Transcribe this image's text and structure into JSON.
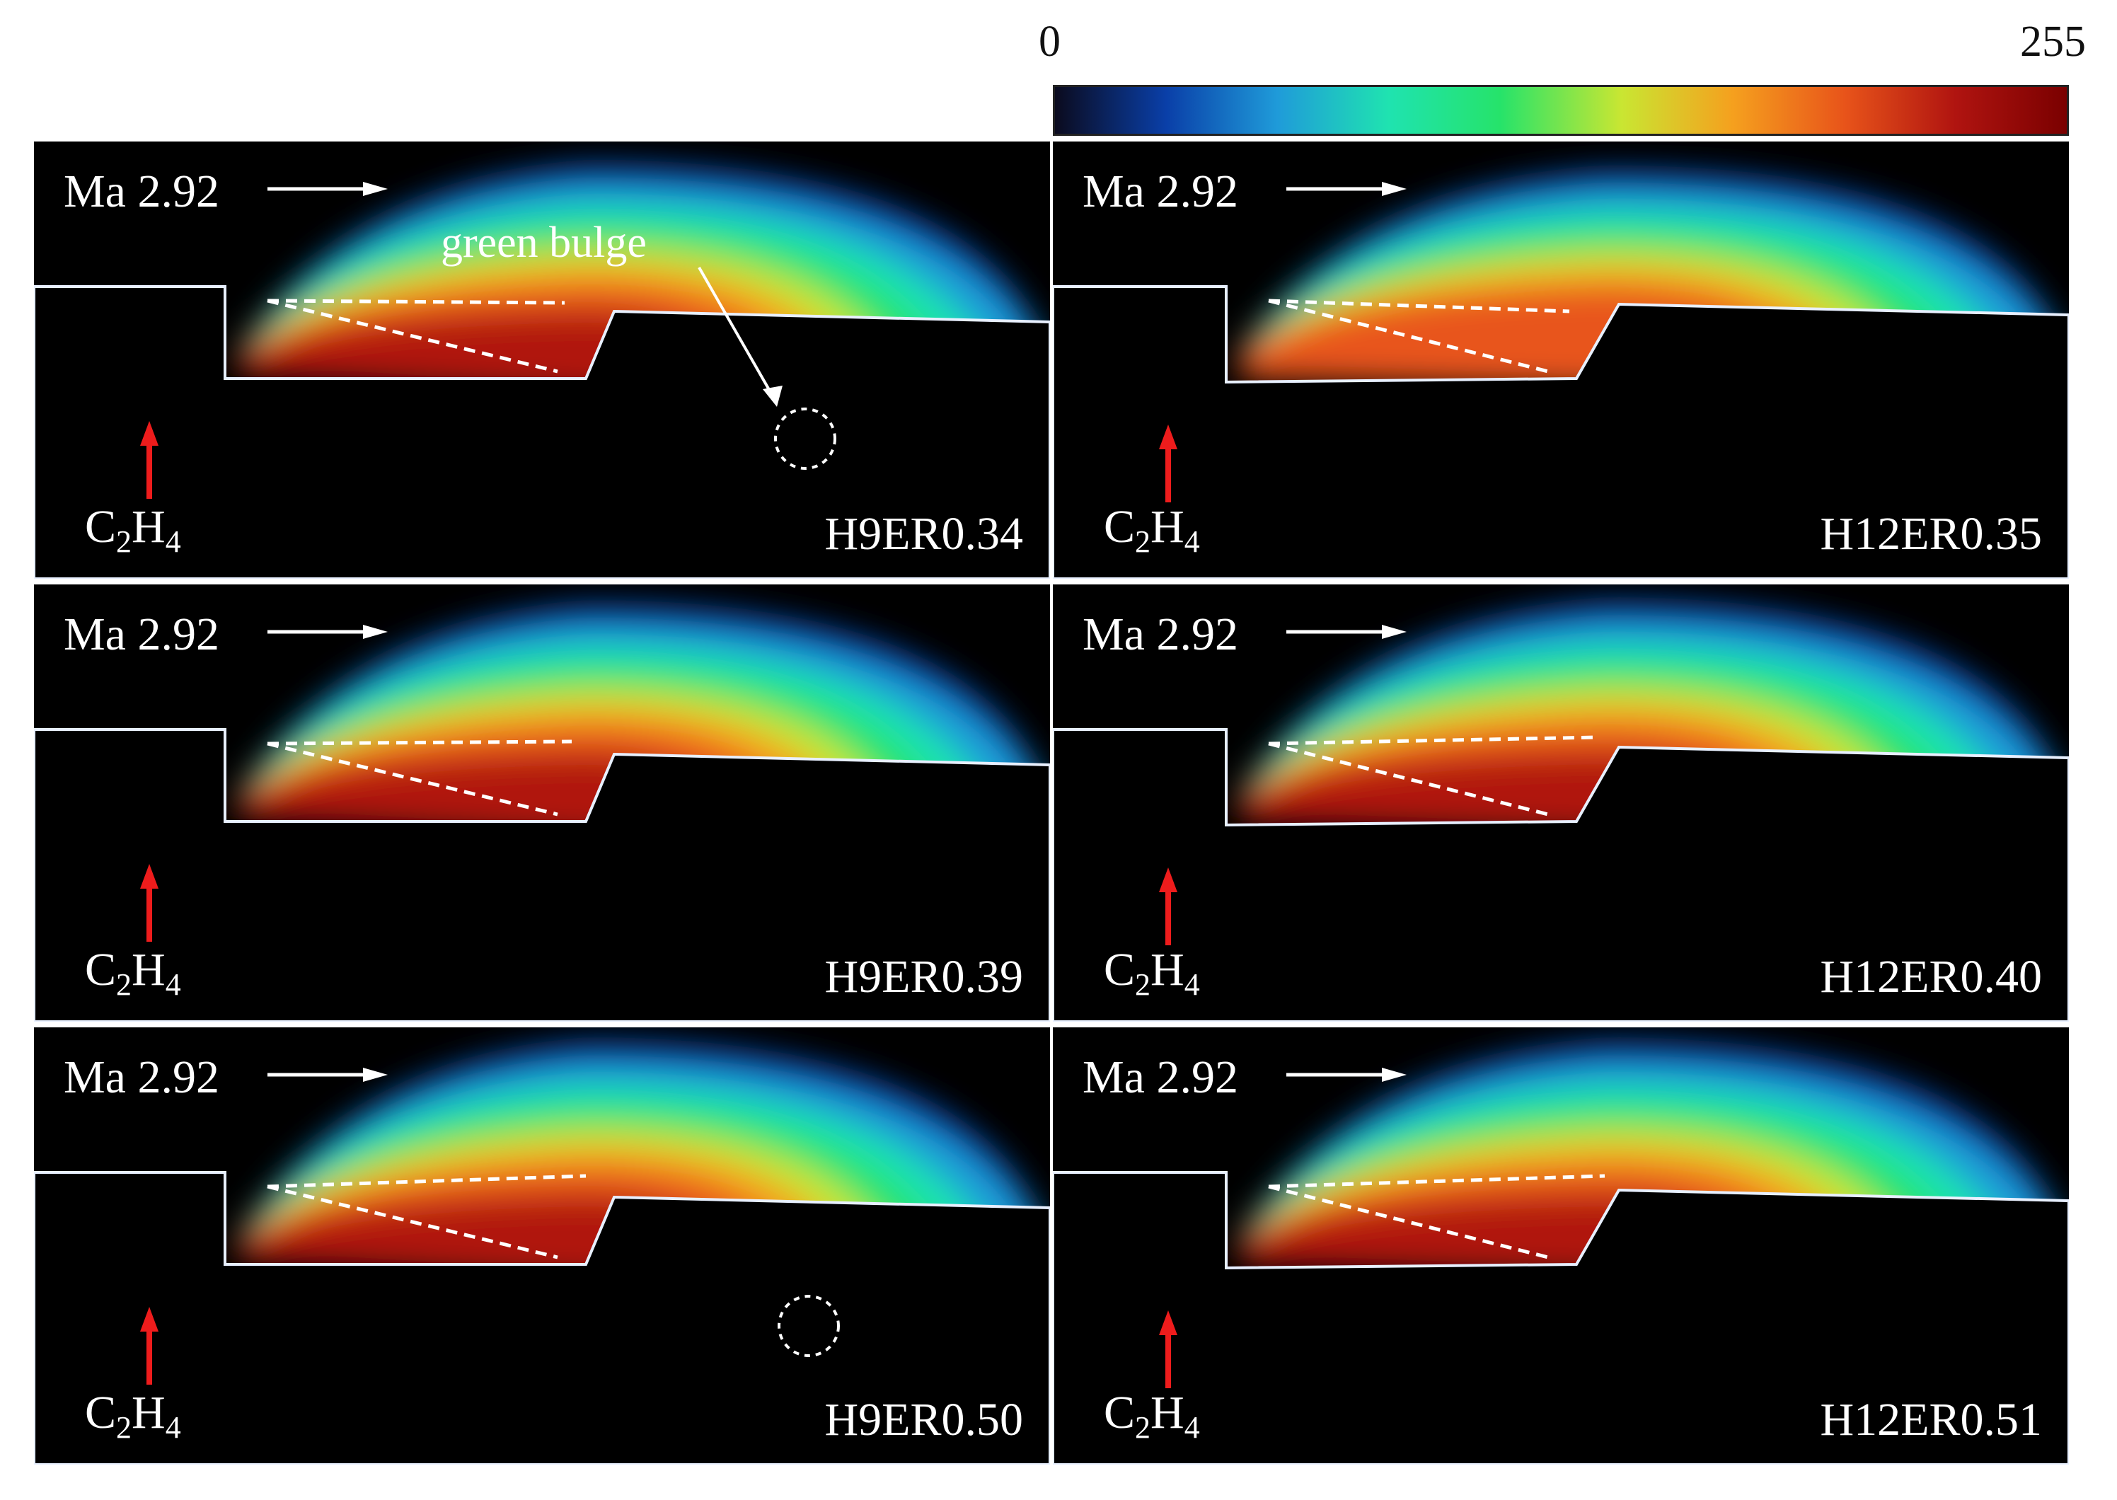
{
  "colorbar": {
    "min_label": "0",
    "max_label": "255",
    "stops": [
      "#0b0b1e",
      "#0a3fa8",
      "#1f9bd9",
      "#1fe3b0",
      "#26e36a",
      "#c9e632",
      "#f5a01e",
      "#e8541a",
      "#b01410",
      "#7a0000"
    ]
  },
  "common": {
    "mach_label": "Ma 2.92",
    "fuel_label_main": "C",
    "fuel_sub_1": "2",
    "fuel_label_mid": "H",
    "fuel_sub_2": "4",
    "fuel_arrow_color": "#ee1c1c"
  },
  "annotation": {
    "green_bulge_label": "green bulge"
  },
  "panels": [
    {
      "id": "p1",
      "label": "H9ER0.34",
      "intensity": 0.85
    },
    {
      "id": "p2",
      "label": "H12ER0.35",
      "intensity": 0.75
    },
    {
      "id": "p3",
      "label": "H9ER0.39",
      "intensity": 0.9
    },
    {
      "id": "p4",
      "label": "H12ER0.40",
      "intensity": 0.95
    },
    {
      "id": "p5",
      "label": "H9ER0.50",
      "intensity": 1.0
    },
    {
      "id": "p6",
      "label": "H12ER0.51",
      "intensity": 1.0
    }
  ]
}
